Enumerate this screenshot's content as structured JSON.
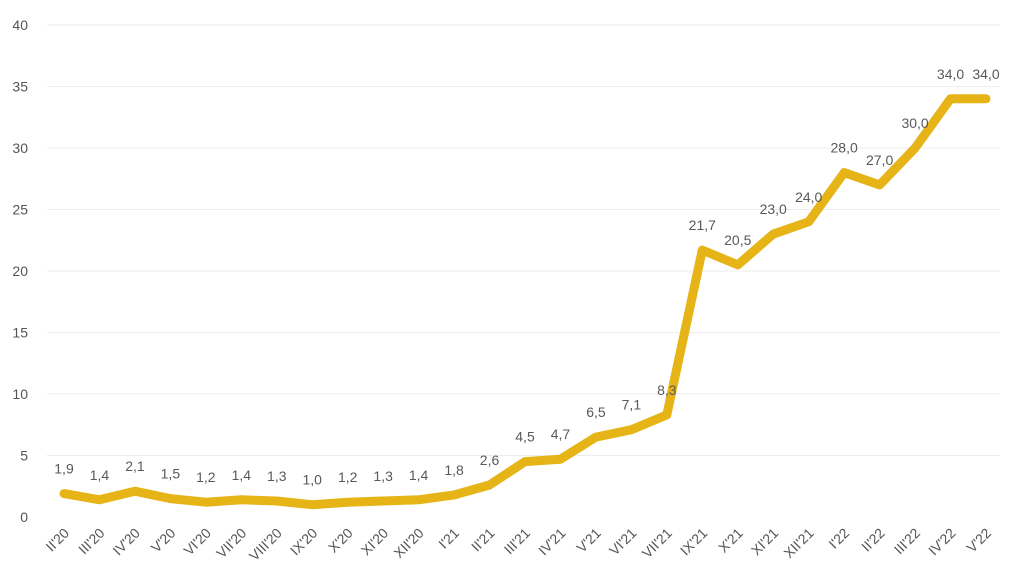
{
  "chart_data": {
    "type": "line",
    "title": "",
    "xlabel": "",
    "ylabel": "",
    "ylim": [
      0,
      40
    ],
    "yticks": [
      "0",
      "5",
      "10",
      "15",
      "20",
      "25",
      "30",
      "35",
      "40"
    ],
    "grid": true,
    "line_color": "#E6B417",
    "categories": [
      "II'20",
      "III'20",
      "IV'20",
      "V'20",
      "VI'20",
      "VII'20",
      "VIII'20",
      "IX'20",
      "X'20",
      "XI'20",
      "XII'20",
      "I'21",
      "II'21",
      "III'21",
      "IV'21",
      "V'21",
      "VI'21",
      "VII'21",
      "IX'21",
      "X'21",
      "XI'21",
      "XII'21",
      "I'22",
      "II'22",
      "III'22",
      "IV'22",
      "V'22"
    ],
    "series": [
      {
        "name": "",
        "values": [
          1.9,
          1.4,
          2.1,
          1.5,
          1.2,
          1.4,
          1.3,
          1.0,
          1.2,
          1.3,
          1.4,
          1.8,
          2.6,
          4.5,
          4.7,
          6.5,
          7.1,
          8.3,
          21.7,
          20.5,
          23.0,
          24.0,
          28.0,
          27.0,
          30.0,
          34.0,
          34.0
        ],
        "data_labels": [
          "1,9",
          "1,4",
          "2,1",
          "1,5",
          "1,2",
          "1,4",
          "1,3",
          "1,0",
          "1,2",
          "1,3",
          "1,4",
          "1,8",
          "2,6",
          "4,5",
          "4,7",
          "6,5",
          "7,1",
          "8,3",
          "21,7",
          "20,5",
          "23,0",
          "24,0",
          "28,0",
          "27,0",
          "30,0",
          "34,0",
          "34,0"
        ]
      }
    ]
  }
}
